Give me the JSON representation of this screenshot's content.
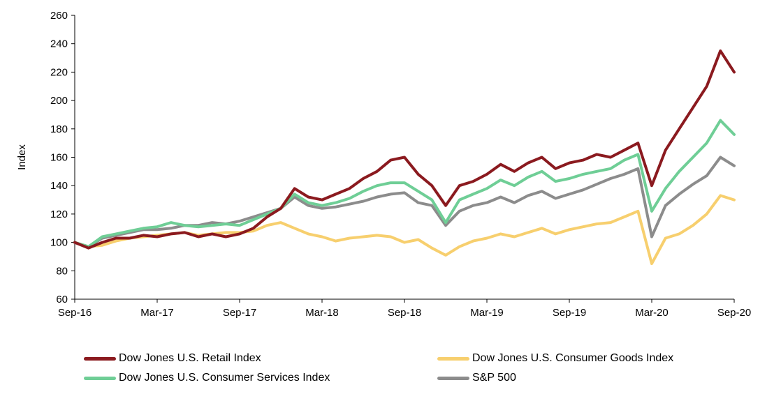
{
  "chart_data": {
    "type": "line",
    "xlabel": "",
    "ylabel": "Index",
    "ylim": [
      60,
      260
    ],
    "yticks": [
      60,
      80,
      100,
      120,
      140,
      160,
      180,
      200,
      220,
      240,
      260
    ],
    "xlim": [
      "2016-09",
      "2020-09"
    ],
    "xticks": [
      "Sep-16",
      "Mar-17",
      "Sep-17",
      "Mar-18",
      "Sep-18",
      "Mar-19",
      "Sep-19",
      "Mar-20",
      "Sep-20"
    ],
    "grid": false,
    "legend_position": "bottom",
    "series": [
      {
        "name": "Dow Jones U.S. Retail Index",
        "color": "#8b1a1f",
        "x": [
          "2016-09",
          "2016-10",
          "2016-11",
          "2016-12",
          "2017-01",
          "2017-02",
          "2017-03",
          "2017-04",
          "2017-05",
          "2017-06",
          "2017-07",
          "2017-08",
          "2017-09",
          "2017-10",
          "2017-11",
          "2017-12",
          "2018-01",
          "2018-02",
          "2018-03",
          "2018-04",
          "2018-05",
          "2018-06",
          "2018-07",
          "2018-08",
          "2018-09",
          "2018-10",
          "2018-11",
          "2018-12",
          "2019-01",
          "2019-02",
          "2019-03",
          "2019-04",
          "2019-05",
          "2019-06",
          "2019-07",
          "2019-08",
          "2019-09",
          "2019-10",
          "2019-11",
          "2019-12",
          "2020-01",
          "2020-02",
          "2020-03",
          "2020-04",
          "2020-05",
          "2020-06",
          "2020-07",
          "2020-08",
          "2020-09"
        ],
        "y": [
          100,
          96,
          100,
          103,
          103,
          105,
          104,
          106,
          107,
          104,
          106,
          104,
          106,
          110,
          118,
          124,
          138,
          132,
          130,
          134,
          138,
          145,
          150,
          158,
          160,
          148,
          140,
          126,
          140,
          143,
          148,
          155,
          150,
          156,
          160,
          152,
          156,
          158,
          162,
          160,
          165,
          170,
          140,
          165,
          180,
          195,
          210,
          235,
          220
        ]
      },
      {
        "name": "Dow Jones U.S. Consumer Goods Index",
        "color": "#f7cf6e",
        "x": [
          "2016-09",
          "2016-10",
          "2016-11",
          "2016-12",
          "2017-01",
          "2017-02",
          "2017-03",
          "2017-04",
          "2017-05",
          "2017-06",
          "2017-07",
          "2017-08",
          "2017-09",
          "2017-10",
          "2017-11",
          "2017-12",
          "2018-01",
          "2018-02",
          "2018-03",
          "2018-04",
          "2018-05",
          "2018-06",
          "2018-07",
          "2018-08",
          "2018-09",
          "2018-10",
          "2018-11",
          "2018-12",
          "2019-01",
          "2019-02",
          "2019-03",
          "2019-04",
          "2019-05",
          "2019-06",
          "2019-07",
          "2019-08",
          "2019-09",
          "2019-10",
          "2019-11",
          "2019-12",
          "2020-01",
          "2020-02",
          "2020-03",
          "2020-04",
          "2020-05",
          "2020-06",
          "2020-07",
          "2020-08",
          "2020-09"
        ],
        "y": [
          100,
          97,
          98,
          101,
          103,
          104,
          105,
          106,
          107,
          105,
          106,
          107,
          107,
          108,
          112,
          114,
          110,
          106,
          104,
          101,
          103,
          104,
          105,
          104,
          100,
          102,
          96,
          91,
          97,
          101,
          103,
          106,
          104,
          107,
          110,
          106,
          109,
          111,
          113,
          114,
          118,
          122,
          85,
          103,
          106,
          112,
          120,
          133,
          130
        ]
      },
      {
        "name": "Dow Jones U.S. Consumer Services Index",
        "color": "#6fce96",
        "x": [
          "2016-09",
          "2016-10",
          "2016-11",
          "2016-12",
          "2017-01",
          "2017-02",
          "2017-03",
          "2017-04",
          "2017-05",
          "2017-06",
          "2017-07",
          "2017-08",
          "2017-09",
          "2017-10",
          "2017-11",
          "2017-12",
          "2018-01",
          "2018-02",
          "2018-03",
          "2018-04",
          "2018-05",
          "2018-06",
          "2018-07",
          "2018-08",
          "2018-09",
          "2018-10",
          "2018-11",
          "2018-12",
          "2019-01",
          "2019-02",
          "2019-03",
          "2019-04",
          "2019-05",
          "2019-06",
          "2019-07",
          "2019-08",
          "2019-09",
          "2019-10",
          "2019-11",
          "2019-12",
          "2020-01",
          "2020-02",
          "2020-03",
          "2020-04",
          "2020-05",
          "2020-06",
          "2020-07",
          "2020-08",
          "2020-09"
        ],
        "y": [
          100,
          97,
          104,
          106,
          108,
          110,
          111,
          114,
          112,
          111,
          112,
          113,
          112,
          116,
          120,
          124,
          134,
          128,
          126,
          128,
          131,
          136,
          140,
          142,
          142,
          136,
          130,
          114,
          130,
          134,
          138,
          144,
          140,
          146,
          150,
          143,
          145,
          148,
          150,
          152,
          158,
          162,
          122,
          138,
          150,
          160,
          170,
          186,
          176
        ]
      },
      {
        "name": "S&P 500",
        "color": "#8c8c8c",
        "x": [
          "2016-09",
          "2016-10",
          "2016-11",
          "2016-12",
          "2017-01",
          "2017-02",
          "2017-03",
          "2017-04",
          "2017-05",
          "2017-06",
          "2017-07",
          "2017-08",
          "2017-09",
          "2017-10",
          "2017-11",
          "2017-12",
          "2018-01",
          "2018-02",
          "2018-03",
          "2018-04",
          "2018-05",
          "2018-06",
          "2018-07",
          "2018-08",
          "2018-09",
          "2018-10",
          "2018-11",
          "2018-12",
          "2019-01",
          "2019-02",
          "2019-03",
          "2019-04",
          "2019-05",
          "2019-06",
          "2019-07",
          "2019-08",
          "2019-09",
          "2019-10",
          "2019-11",
          "2019-12",
          "2020-01",
          "2020-02",
          "2020-03",
          "2020-04",
          "2020-05",
          "2020-06",
          "2020-07",
          "2020-08",
          "2020-09"
        ],
        "y": [
          100,
          97,
          103,
          105,
          107,
          109,
          109,
          110,
          112,
          112,
          114,
          113,
          115,
          118,
          121,
          124,
          132,
          126,
          124,
          125,
          127,
          129,
          132,
          134,
          135,
          128,
          126,
          112,
          122,
          126,
          128,
          132,
          128,
          133,
          136,
          131,
          134,
          137,
          141,
          145,
          148,
          152,
          104,
          126,
          134,
          141,
          147,
          160,
          154
        ]
      }
    ]
  }
}
